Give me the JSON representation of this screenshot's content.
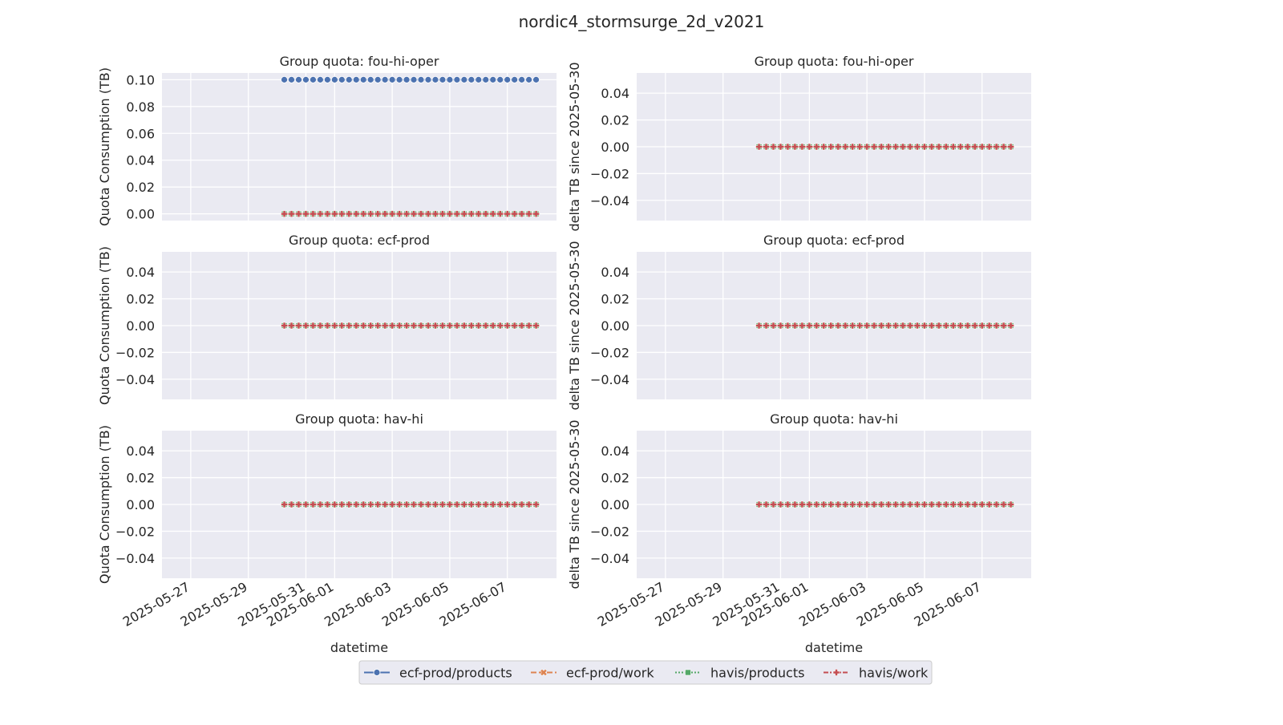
{
  "title": "nordic4_stormsurge_2d_v2021",
  "legend": {
    "placement": "bottom-center",
    "entries": [
      {
        "label": "ecf-prod/products",
        "color": "#4c72b0",
        "marker": "circle",
        "dash": "solid"
      },
      {
        "label": "ecf-prod/work",
        "color": "#dd8452",
        "marker": "x-filled",
        "dash": "dashed"
      },
      {
        "label": "havis/products",
        "color": "#55a868",
        "marker": "square",
        "dash": "dotted"
      },
      {
        "label": "havis/work",
        "color": "#c44e52",
        "marker": "plus",
        "dash": "dashdot"
      }
    ]
  },
  "chart_data": [
    {
      "type": "line",
      "title": "Group quota: fou-hi-oper",
      "xlabel": "datetime",
      "ylabel": "Quota Consumption (TB)",
      "xlim": [
        "2025-05-26",
        "2025-06-08T17:00"
      ],
      "ylim": [
        -0.005,
        0.105
      ],
      "yticks": [
        "0.00",
        "0.02",
        "0.04",
        "0.06",
        "0.08",
        "0.10"
      ],
      "series": [
        {
          "name": "ecf-prod/products",
          "x_start": "2025-05-30T06:00",
          "x_step_hours": 6,
          "count": 36,
          "y": 0.1
        },
        {
          "name": "ecf-prod/work",
          "x_start": "2025-05-30T06:00",
          "x_step_hours": 6,
          "count": 36,
          "y": 0.0
        },
        {
          "name": "havis/products",
          "x_start": "2025-05-30T06:00",
          "x_step_hours": 6,
          "count": 36,
          "y": 0.0
        },
        {
          "name": "havis/work",
          "x_start": "2025-05-30T06:00",
          "x_step_hours": 6,
          "count": 36,
          "y": 0.0
        }
      ]
    },
    {
      "type": "line",
      "title": "Group quota: fou-hi-oper",
      "xlabel": "datetime",
      "ylabel": "delta TB since 2025-05-30",
      "xlim": [
        "2025-05-26",
        "2025-06-08T17:00"
      ],
      "ylim": [
        -0.055,
        0.055
      ],
      "yticks": [
        "−0.04",
        "−0.02",
        "0.00",
        "0.02",
        "0.04"
      ],
      "series": [
        {
          "name": "ecf-prod/products",
          "x_start": "2025-05-30T06:00",
          "x_step_hours": 6,
          "count": 36,
          "y": 0.0
        },
        {
          "name": "ecf-prod/work",
          "x_start": "2025-05-30T06:00",
          "x_step_hours": 6,
          "count": 36,
          "y": 0.0
        },
        {
          "name": "havis/products",
          "x_start": "2025-05-30T06:00",
          "x_step_hours": 6,
          "count": 36,
          "y": 0.0
        },
        {
          "name": "havis/work",
          "x_start": "2025-05-30T06:00",
          "x_step_hours": 6,
          "count": 36,
          "y": 0.0
        }
      ]
    },
    {
      "type": "line",
      "title": "Group quota: ecf-prod",
      "xlabel": "datetime",
      "ylabel": "Quota Consumption (TB)",
      "xlim": [
        "2025-05-26",
        "2025-06-08T17:00"
      ],
      "ylim": [
        -0.055,
        0.055
      ],
      "yticks": [
        "−0.04",
        "−0.02",
        "0.00",
        "0.02",
        "0.04"
      ],
      "series": [
        {
          "name": "ecf-prod/products",
          "x_start": "2025-05-30T06:00",
          "x_step_hours": 6,
          "count": 36,
          "y": 0.0
        },
        {
          "name": "ecf-prod/work",
          "x_start": "2025-05-30T06:00",
          "x_step_hours": 6,
          "count": 36,
          "y": 0.0
        },
        {
          "name": "havis/products",
          "x_start": "2025-05-30T06:00",
          "x_step_hours": 6,
          "count": 36,
          "y": 0.0
        },
        {
          "name": "havis/work",
          "x_start": "2025-05-30T06:00",
          "x_step_hours": 6,
          "count": 36,
          "y": 0.0
        }
      ]
    },
    {
      "type": "line",
      "title": "Group quota: ecf-prod",
      "xlabel": "datetime",
      "ylabel": "delta TB since 2025-05-30",
      "xlim": [
        "2025-05-26",
        "2025-06-08T17:00"
      ],
      "ylim": [
        -0.055,
        0.055
      ],
      "yticks": [
        "−0.04",
        "−0.02",
        "0.00",
        "0.02",
        "0.04"
      ],
      "series": [
        {
          "name": "ecf-prod/products",
          "x_start": "2025-05-30T06:00",
          "x_step_hours": 6,
          "count": 36,
          "y": 0.0
        },
        {
          "name": "ecf-prod/work",
          "x_start": "2025-05-30T06:00",
          "x_step_hours": 6,
          "count": 36,
          "y": 0.0
        },
        {
          "name": "havis/products",
          "x_start": "2025-05-30T06:00",
          "x_step_hours": 6,
          "count": 36,
          "y": 0.0
        },
        {
          "name": "havis/work",
          "x_start": "2025-05-30T06:00",
          "x_step_hours": 6,
          "count": 36,
          "y": 0.0
        }
      ]
    },
    {
      "type": "line",
      "title": "Group quota: hav-hi",
      "xlabel": "datetime",
      "ylabel": "Quota Consumption (TB)",
      "xlim": [
        "2025-05-26",
        "2025-06-08T17:00"
      ],
      "ylim": [
        -0.055,
        0.055
      ],
      "yticks": [
        "−0.04",
        "−0.02",
        "0.00",
        "0.02",
        "0.04"
      ],
      "xticks": [
        "2025-05-27",
        "2025-05-29",
        "2025-05-31",
        "2025-06-01",
        "2025-06-03",
        "2025-06-05",
        "2025-06-07"
      ],
      "series": [
        {
          "name": "ecf-prod/products",
          "x_start": "2025-05-30T06:00",
          "x_step_hours": 6,
          "count": 36,
          "y": 0.0
        },
        {
          "name": "ecf-prod/work",
          "x_start": "2025-05-30T06:00",
          "x_step_hours": 6,
          "count": 36,
          "y": 0.0
        },
        {
          "name": "havis/products",
          "x_start": "2025-05-30T06:00",
          "x_step_hours": 6,
          "count": 36,
          "y": 0.0
        },
        {
          "name": "havis/work",
          "x_start": "2025-05-30T06:00",
          "x_step_hours": 6,
          "count": 36,
          "y": 0.0
        }
      ]
    },
    {
      "type": "line",
      "title": "Group quota: hav-hi",
      "xlabel": "datetime",
      "ylabel": "delta TB since 2025-05-30",
      "xlim": [
        "2025-05-26",
        "2025-06-08T17:00"
      ],
      "ylim": [
        -0.055,
        0.055
      ],
      "yticks": [
        "−0.04",
        "−0.02",
        "0.00",
        "0.02",
        "0.04"
      ],
      "xticks": [
        "2025-05-27",
        "2025-05-29",
        "2025-05-31",
        "2025-06-01",
        "2025-06-03",
        "2025-06-05",
        "2025-06-07"
      ],
      "series": [
        {
          "name": "ecf-prod/products",
          "x_start": "2025-05-30T06:00",
          "x_step_hours": 6,
          "count": 36,
          "y": 0.0
        },
        {
          "name": "ecf-prod/work",
          "x_start": "2025-05-30T06:00",
          "x_step_hours": 6,
          "count": 36,
          "y": 0.0
        },
        {
          "name": "havis/products",
          "x_start": "2025-05-30T06:00",
          "x_step_hours": 6,
          "count": 36,
          "y": 0.0
        },
        {
          "name": "havis/work",
          "x_start": "2025-05-30T06:00",
          "x_step_hours": 6,
          "count": 36,
          "y": 0.0
        }
      ]
    }
  ]
}
